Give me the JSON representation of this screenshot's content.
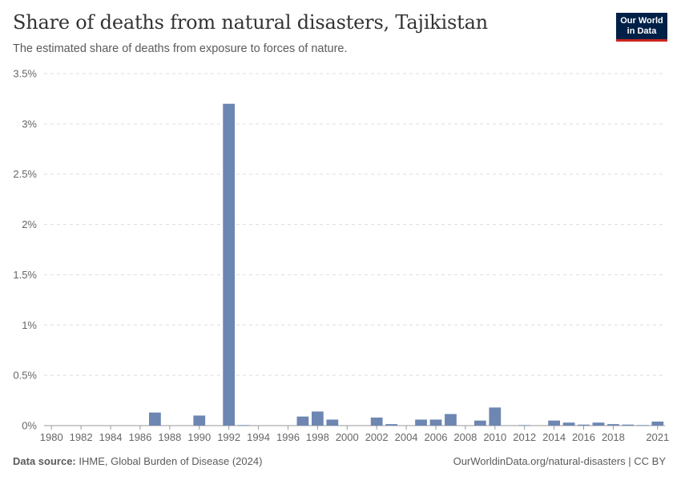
{
  "header": {
    "title": "Share of deaths from natural disasters, Tajikistan",
    "subtitle": "The estimated share of deaths from exposure to forces of nature."
  },
  "logo": {
    "line1": "Our World",
    "line2": "in Data"
  },
  "footer": {
    "source_label": "Data source:",
    "source_text": "IHME, Global Burden of Disease (2024)",
    "url_text": "OurWorldinData.org/natural-disasters | CC BY"
  },
  "colors": {
    "bar": "#6d86b2",
    "grid": "#dddddd",
    "logo_bg": "#002147",
    "logo_accent": "#ce261e"
  },
  "chart_data": {
    "type": "bar",
    "title": "Share of deaths from natural disasters, Tajikistan",
    "subtitle": "The estimated share of deaths from exposure to forces of nature.",
    "y_unit": "%",
    "ylim": [
      0,
      3.5
    ],
    "y_ticks": [
      "0%",
      "0.5%",
      "1%",
      "1.5%",
      "2%",
      "2.5%",
      "3%",
      "3.5%"
    ],
    "x_ticks": [
      "1980",
      "1982",
      "1984",
      "1986",
      "1988",
      "1990",
      "1992",
      "1994",
      "1996",
      "1998",
      "2000",
      "2002",
      "2004",
      "2006",
      "2008",
      "2010",
      "2012",
      "2014",
      "2016",
      "2018",
      "2021"
    ],
    "grid": true,
    "categories": [
      1980,
      1981,
      1982,
      1983,
      1984,
      1985,
      1986,
      1987,
      1988,
      1989,
      1990,
      1991,
      1992,
      1993,
      1994,
      1995,
      1996,
      1997,
      1998,
      1999,
      2000,
      2001,
      2002,
      2003,
      2004,
      2005,
      2006,
      2007,
      2008,
      2009,
      2010,
      2011,
      2012,
      2013,
      2014,
      2015,
      2016,
      2017,
      2018,
      2019,
      2020,
      2021
    ],
    "values": [
      0,
      0,
      0,
      0,
      0,
      0,
      0,
      0.13,
      0,
      0,
      0.1,
      0,
      3.2,
      0.005,
      0,
      0,
      0,
      0.09,
      0.14,
      0.06,
      0,
      0,
      0.08,
      0.015,
      0,
      0.06,
      0.06,
      0.115,
      0,
      0.05,
      0.18,
      0,
      0.005,
      0,
      0.05,
      0.03,
      0.01,
      0.03,
      0.015,
      0.01,
      0.005,
      0.04
    ]
  }
}
